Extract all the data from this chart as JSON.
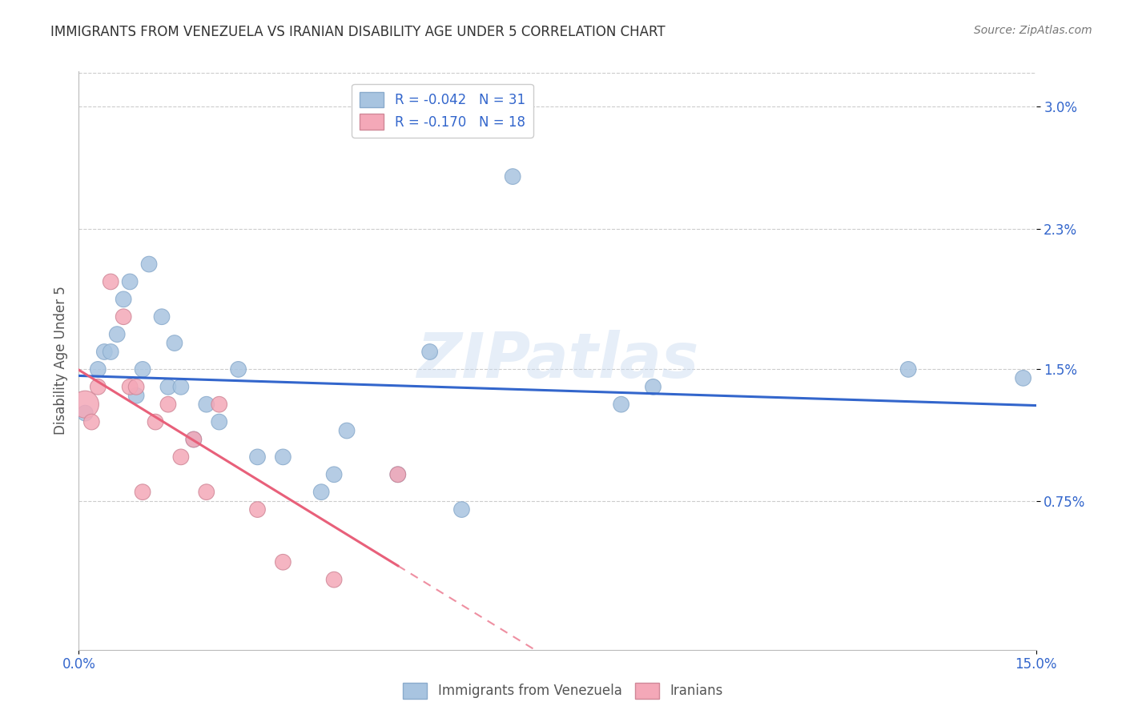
{
  "title": "IMMIGRANTS FROM VENEZUELA VS IRANIAN DISABILITY AGE UNDER 5 CORRELATION CHART",
  "source": "Source: ZipAtlas.com",
  "ylabel": "Disability Age Under 5",
  "xlim": [
    0.0,
    0.15
  ],
  "ylim": [
    -0.001,
    0.032
  ],
  "color_venezuela": "#a8c4e0",
  "color_iranians": "#f4a8b8",
  "color_line_venezuela": "#3366cc",
  "color_line_iranians": "#e8607a",
  "watermark": "ZIPatlas",
  "venezuela_x": [
    0.001,
    0.003,
    0.004,
    0.005,
    0.006,
    0.007,
    0.008,
    0.009,
    0.01,
    0.011,
    0.013,
    0.014,
    0.015,
    0.016,
    0.018,
    0.02,
    0.022,
    0.025,
    0.028,
    0.032,
    0.038,
    0.04,
    0.042,
    0.05,
    0.055,
    0.06,
    0.068,
    0.085,
    0.09,
    0.13,
    0.148
  ],
  "venezuela_y": [
    0.0125,
    0.015,
    0.016,
    0.016,
    0.017,
    0.019,
    0.02,
    0.0135,
    0.015,
    0.021,
    0.018,
    0.014,
    0.0165,
    0.014,
    0.011,
    0.013,
    0.012,
    0.015,
    0.01,
    0.01,
    0.008,
    0.009,
    0.0115,
    0.009,
    0.016,
    0.007,
    0.026,
    0.013,
    0.014,
    0.015,
    0.0145
  ],
  "iranians_x": [
    0.001,
    0.002,
    0.003,
    0.005,
    0.007,
    0.008,
    0.009,
    0.01,
    0.012,
    0.014,
    0.016,
    0.018,
    0.02,
    0.022,
    0.028,
    0.032,
    0.04,
    0.05
  ],
  "iranians_y": [
    0.013,
    0.012,
    0.014,
    0.02,
    0.018,
    0.014,
    0.014,
    0.008,
    0.012,
    0.013,
    0.01,
    0.011,
    0.008,
    0.013,
    0.007,
    0.004,
    0.003,
    0.009
  ],
  "venezuela_sizes_base": 200,
  "iranians_sizes_base": 200,
  "iranians_large_idx": 0,
  "iranians_large_size": 600,
  "legend_r1": "R = -0.042",
  "legend_n1": "N = 31",
  "legend_r2": "R = -0.170",
  "legend_n2": "N = 18"
}
